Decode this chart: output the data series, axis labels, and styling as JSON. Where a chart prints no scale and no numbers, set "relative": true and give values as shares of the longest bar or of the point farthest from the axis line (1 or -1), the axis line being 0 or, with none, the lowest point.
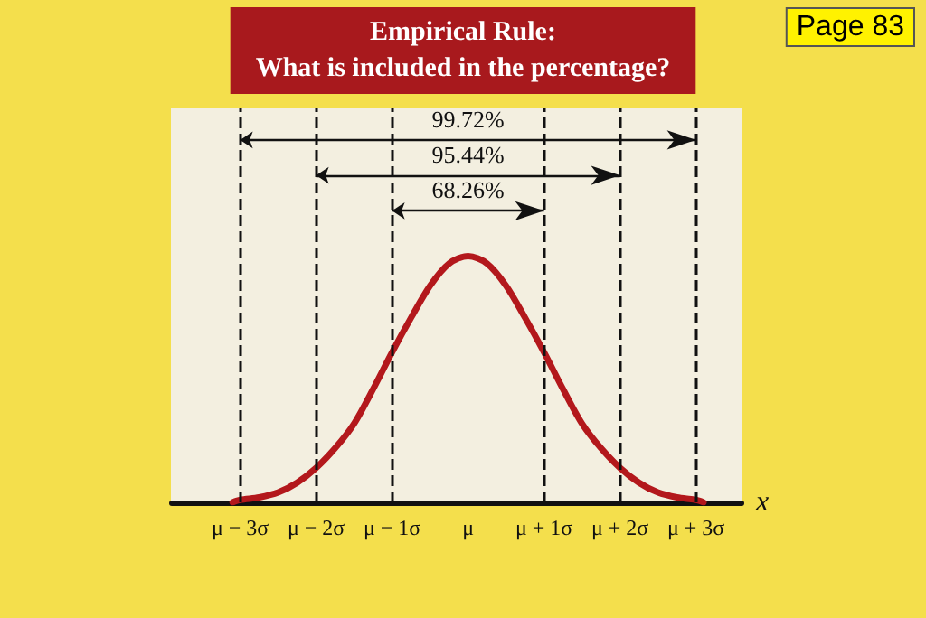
{
  "chart_data": {
    "type": "line",
    "title": "Empirical Rule:\nWhat is included in the percentage?",
    "xlabel": "x",
    "relative": true,
    "color": "#b3181c",
    "line_style": "solid",
    "marker": "none",
    "grid": false,
    "x": [
      -3.1,
      -3,
      -2.75,
      -2.5,
      -2.25,
      -2,
      -1.75,
      -1.5,
      -1.25,
      -1,
      -0.75,
      -0.5,
      -0.25,
      0,
      0.25,
      0.5,
      0.75,
      1,
      1.25,
      1.5,
      1.75,
      2,
      2.25,
      2.5,
      2.75,
      3,
      3.1
    ],
    "values": [
      0,
      0.01,
      0.02,
      0.04,
      0.08,
      0.14,
      0.22,
      0.32,
      0.46,
      0.61,
      0.75,
      0.88,
      0.97,
      1,
      0.97,
      0.88,
      0.75,
      0.61,
      0.46,
      0.32,
      0.22,
      0.14,
      0.08,
      0.04,
      0.02,
      0.01,
      0
    ],
    "xlim": [
      -3.9,
      3.6
    ],
    "xticks": [
      {
        "value": -3,
        "label": "μ − 3σ"
      },
      {
        "value": -2,
        "label": "μ − 2σ"
      },
      {
        "value": -1,
        "label": "μ − 1σ"
      },
      {
        "value": 0,
        "label": "μ"
      },
      {
        "value": 1,
        "label": "μ + 1σ"
      },
      {
        "value": 2,
        "label": "μ + 2σ"
      },
      {
        "value": 3,
        "label": "μ + 3σ"
      }
    ],
    "ref_lines": [
      {
        "axis": "x",
        "value": -3,
        "line_style": "dashed",
        "color": "#111111"
      },
      {
        "axis": "x",
        "value": -2,
        "line_style": "dashed",
        "color": "#111111"
      },
      {
        "axis": "x",
        "value": -1,
        "line_style": "dashed",
        "color": "#111111"
      },
      {
        "axis": "x",
        "value": 1,
        "line_style": "dashed",
        "color": "#111111"
      },
      {
        "axis": "x",
        "value": 2,
        "line_style": "dashed",
        "color": "#111111"
      },
      {
        "axis": "x",
        "value": 3,
        "line_style": "dashed",
        "color": "#111111"
      }
    ],
    "annotations": [
      "99.72%",
      "95.44%",
      "68.26%",
      "Page 83"
    ]
  }
}
